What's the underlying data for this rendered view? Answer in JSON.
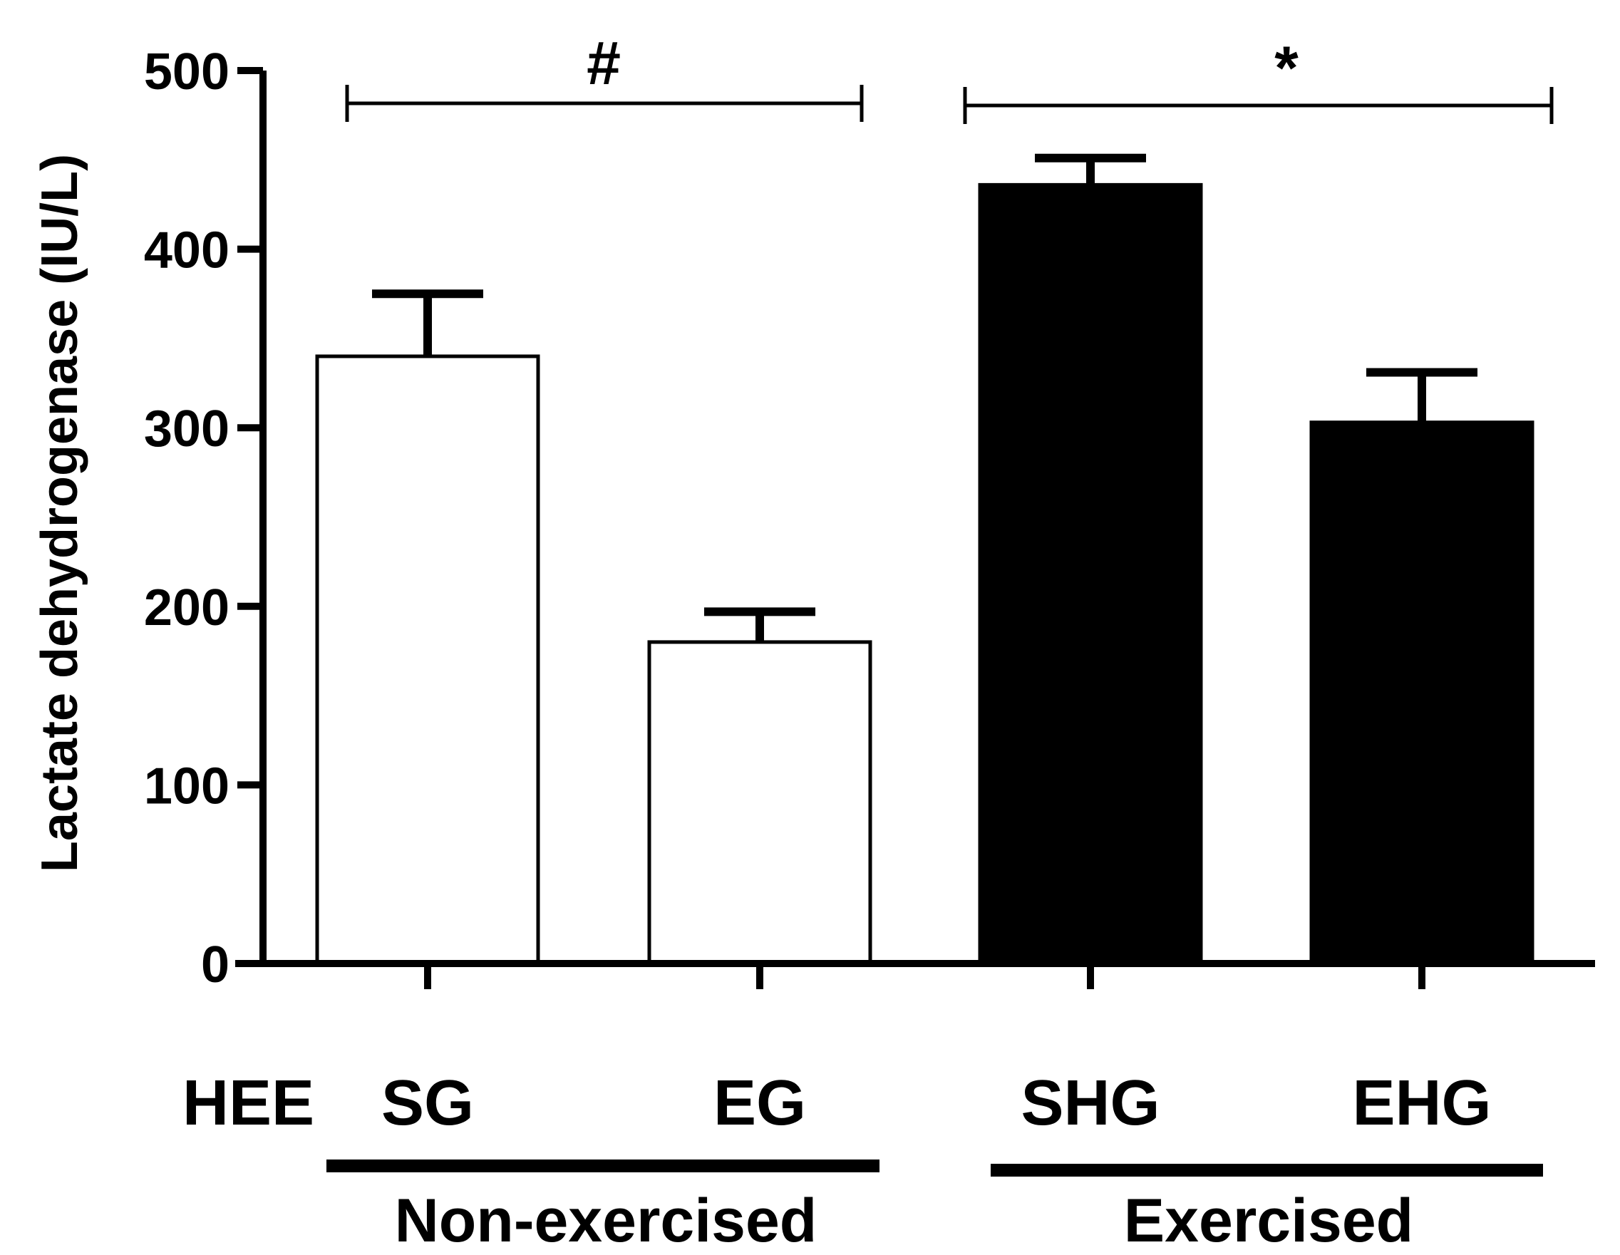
{
  "chart_data": {
    "type": "bar",
    "categories": [
      "SG",
      "EG",
      "SHG",
      "EHG"
    ],
    "values": [
      340,
      180,
      436,
      303
    ],
    "errors": [
      35,
      17,
      15,
      28
    ],
    "bar_colors": [
      "#ffffff",
      "#ffffff",
      "#000000",
      "#000000"
    ],
    "edge_color": "#000000",
    "ylabel": "Lactate dehydrogenase (IU/L)",
    "ylim": [
      0,
      500
    ],
    "yticks": [
      0,
      100,
      200,
      300,
      400,
      500
    ],
    "row_label": "HEE",
    "groups": [
      {
        "label": "Non-exercised",
        "members": [
          "SG",
          "EG"
        ]
      },
      {
        "label": "Exercised",
        "members": [
          "SHG",
          "EHG"
        ]
      }
    ],
    "significance": [
      {
        "symbol": "#",
        "from": "SG",
        "to": "EG"
      },
      {
        "symbol": "*",
        "from": "SHG",
        "to": "EHG"
      }
    ]
  }
}
